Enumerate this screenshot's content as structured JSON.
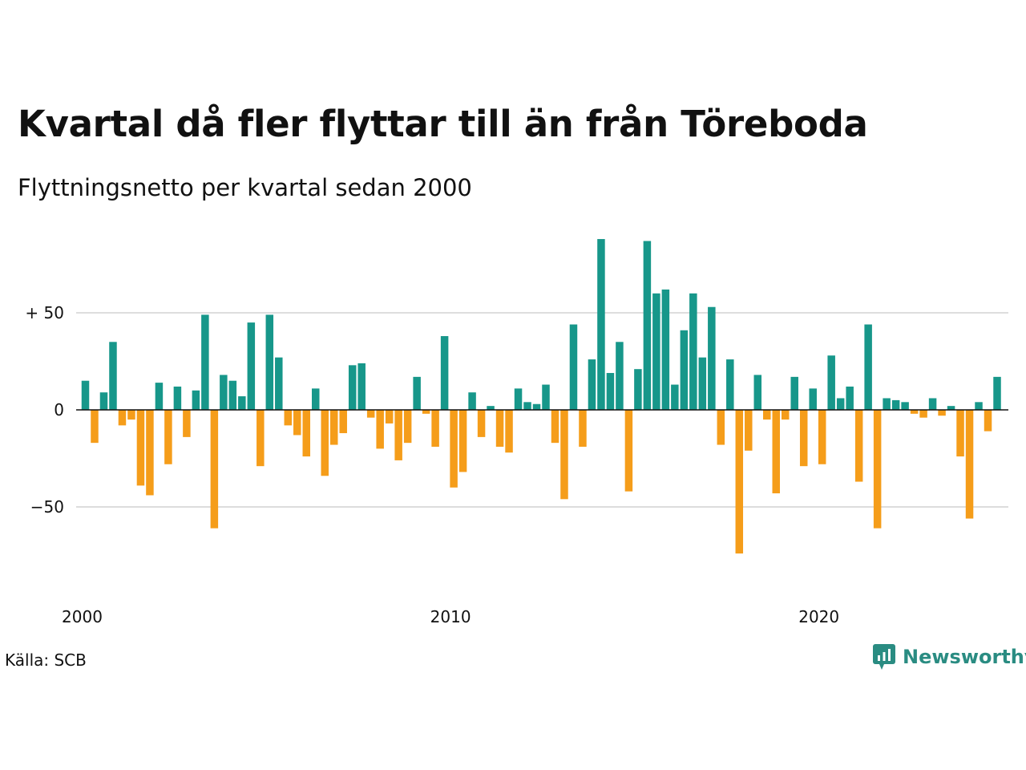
{
  "title": "Kvartal då fler flyttar till än från Töreboda",
  "subtitle": "Flyttningsnetto per kvartal sedan 2000",
  "source": "Källa: SCB",
  "brand": {
    "name": "Newsworthy",
    "icon": "newsworthy-logo-icon"
  },
  "colors": {
    "positive": "#17978a",
    "negative": "#f59d1a",
    "grid": "#dddddd",
    "zero": "#111111"
  },
  "chart_data": {
    "type": "bar",
    "title": "Kvartal då fler flyttar till än från Töreboda",
    "subtitle": "Flyttningsnetto per kvartal sedan 2000",
    "xlabel": "",
    "ylabel": "",
    "start": "2000 Q1",
    "x_ticks": [
      "2000",
      "2010",
      "2020"
    ],
    "y_ticks": [
      {
        "value": 50,
        "label": "+ 50"
      },
      {
        "value": 0,
        "label": "0"
      },
      {
        "value": -50,
        "label": "−50"
      }
    ],
    "ylim": [
      -90,
      90
    ],
    "grid": true,
    "values": [
      15,
      -17,
      9,
      35,
      -8,
      -5,
      -39,
      -44,
      14,
      -28,
      12,
      -14,
      10,
      49,
      -61,
      18,
      15,
      7,
      45,
      -29,
      49,
      27,
      -8,
      -13,
      -24,
      11,
      -34,
      -18,
      -12,
      23,
      24,
      -4,
      -20,
      -7,
      -26,
      -17,
      17,
      -2,
      -19,
      38,
      -40,
      -32,
      9,
      -14,
      2,
      -19,
      -22,
      11,
      4,
      3,
      13,
      -17,
      -46,
      44,
      -19,
      26,
      88,
      19,
      35,
      -42,
      21,
      87,
      60,
      62,
      13,
      41,
      60,
      27,
      53,
      -18,
      26,
      -74,
      -21,
      18,
      -5,
      -43,
      -5,
      17,
      -29,
      11,
      -28,
      28,
      6,
      12,
      -37,
      44,
      -61,
      6,
      5,
      4,
      -2,
      -4,
      6,
      -3,
      2,
      -24,
      -56,
      4,
      -11,
      17
    ]
  }
}
